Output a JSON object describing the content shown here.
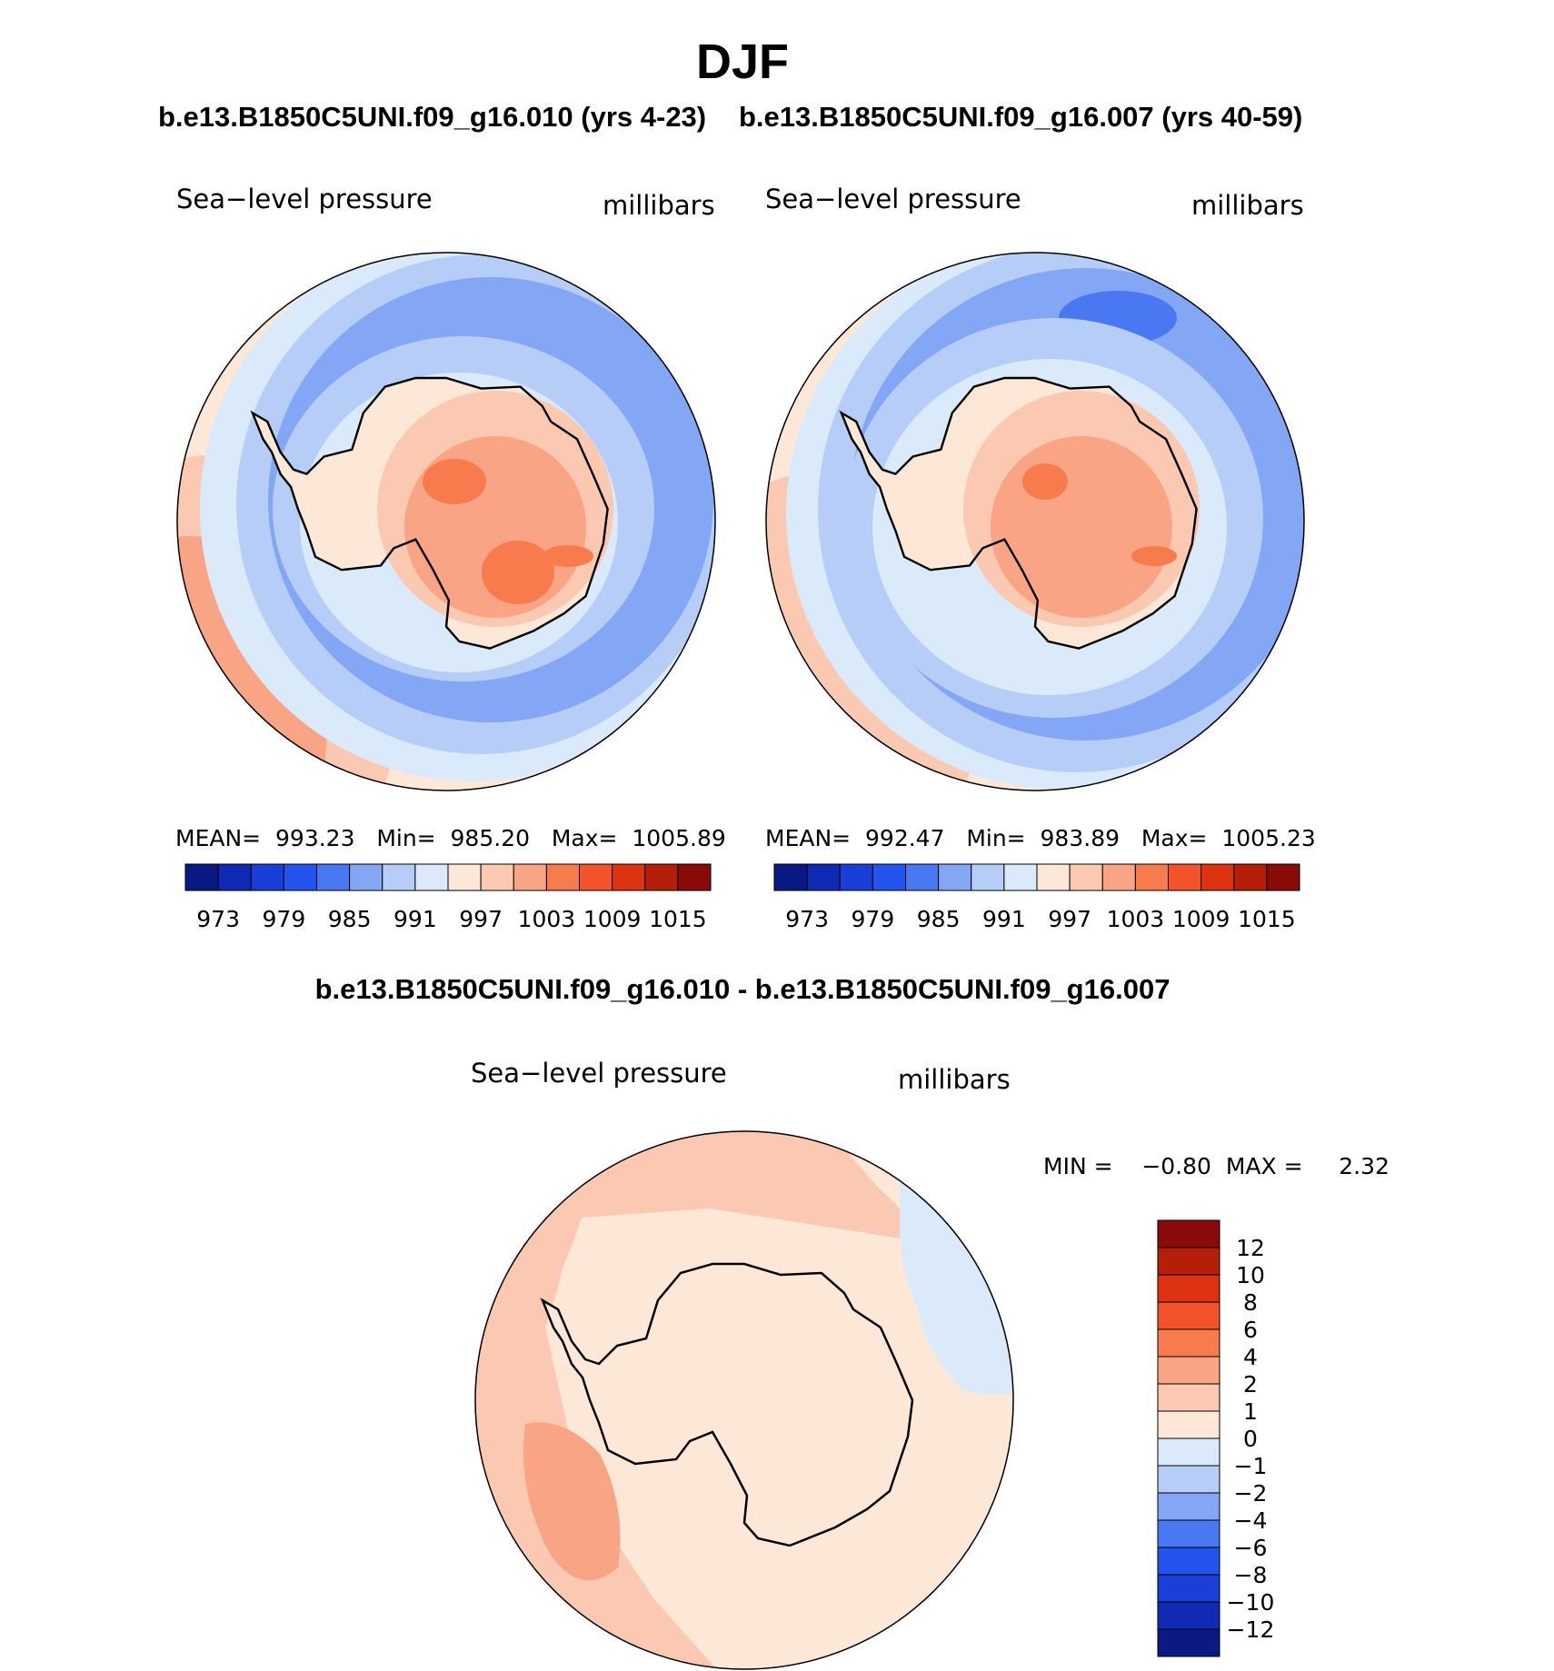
{
  "page_title": "DJF",
  "case_titles": {
    "case1": "b.e13.B1850C5UNI.f09_g16.010 (yrs 4-23)",
    "case2": "b.e13.B1850C5UNI.f09_g16.007 (yrs 40-59)"
  },
  "diff_title": "b.e13.B1850C5UNI.f09_g16.010 - b.e13.B1850C5UNI.f09_g16.007",
  "panels": [
    {
      "id": "case1",
      "variable": "Sea−level pressure",
      "units": "millibars",
      "stats": "MEAN=  993.23   Min=  985.20   Max=  1005.89"
    },
    {
      "id": "case2",
      "variable": "Sea−level pressure",
      "units": "millibars",
      "stats": "MEAN=  992.47   Min=  983.89   Max=  1005.23"
    },
    {
      "id": "difference",
      "variable": "Sea−level pressure",
      "units": "millibars",
      "stats": "MIN =    −0.80  MAX =     2.32"
    }
  ],
  "abs_colorbar": {
    "colors": [
      "#0a1a82",
      "#0f2ab5",
      "#1a3fd8",
      "#2454f0",
      "#4a78f2",
      "#83a6f5",
      "#b6cdf7",
      "#daeafb",
      "#fde8d8",
      "#fbc9b1",
      "#f9a585",
      "#f77b4d",
      "#f4522a",
      "#de3312",
      "#b51f0a",
      "#8a0c0a"
    ],
    "labels": [
      "973",
      "979",
      "985",
      "991",
      "997",
      "1003",
      "1009",
      "1015"
    ]
  },
  "diff_colorbar": {
    "colors": [
      "#0a1a82",
      "#0f2ab5",
      "#1a3fd8",
      "#2454f0",
      "#4a78f2",
      "#83a6f5",
      "#b6cdf7",
      "#daeafb",
      "#fde8d8",
      "#fbc9b1",
      "#f9a585",
      "#f77b4d",
      "#f4522a",
      "#de3312",
      "#b51f0a",
      "#8a0c0a"
    ],
    "labels": [
      "12",
      "10",
      "8",
      "6",
      "4",
      "2",
      "1",
      "0",
      "−1",
      "−2",
      "−4",
      "−6",
      "−8",
      "−10",
      "−12"
    ]
  }
}
